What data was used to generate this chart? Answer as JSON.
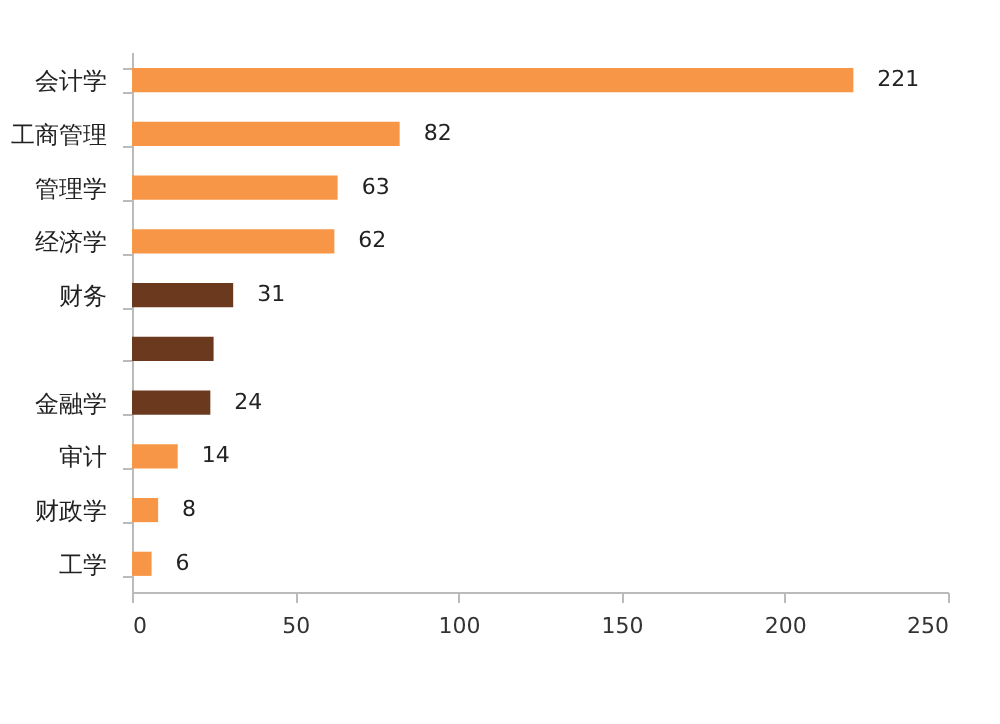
{
  "chart_data": {
    "type": "bar",
    "orientation": "horizontal",
    "categories": [
      "会计学",
      "工商管理",
      "管理学",
      "经济学",
      "财务",
      null,
      "金融学",
      "审计",
      "财政学",
      "工学"
    ],
    "values": [
      221,
      82,
      63,
      62,
      31,
      25,
      24,
      14,
      8,
      6
    ],
    "colors": [
      "#f79646",
      "#f79646",
      "#f79646",
      "#f79646",
      "#6b3a1e",
      "#6b3a1e",
      "#6b3a1e",
      "#f79646",
      "#f79646",
      "#f79646"
    ],
    "value_labels": [
      "221",
      "82",
      "63",
      "62",
      "31",
      null,
      "24",
      "14",
      "8",
      "6"
    ],
    "xlim": [
      0,
      250
    ],
    "xticks": [
      0,
      50,
      100,
      150,
      200,
      250
    ],
    "grid": false
  }
}
